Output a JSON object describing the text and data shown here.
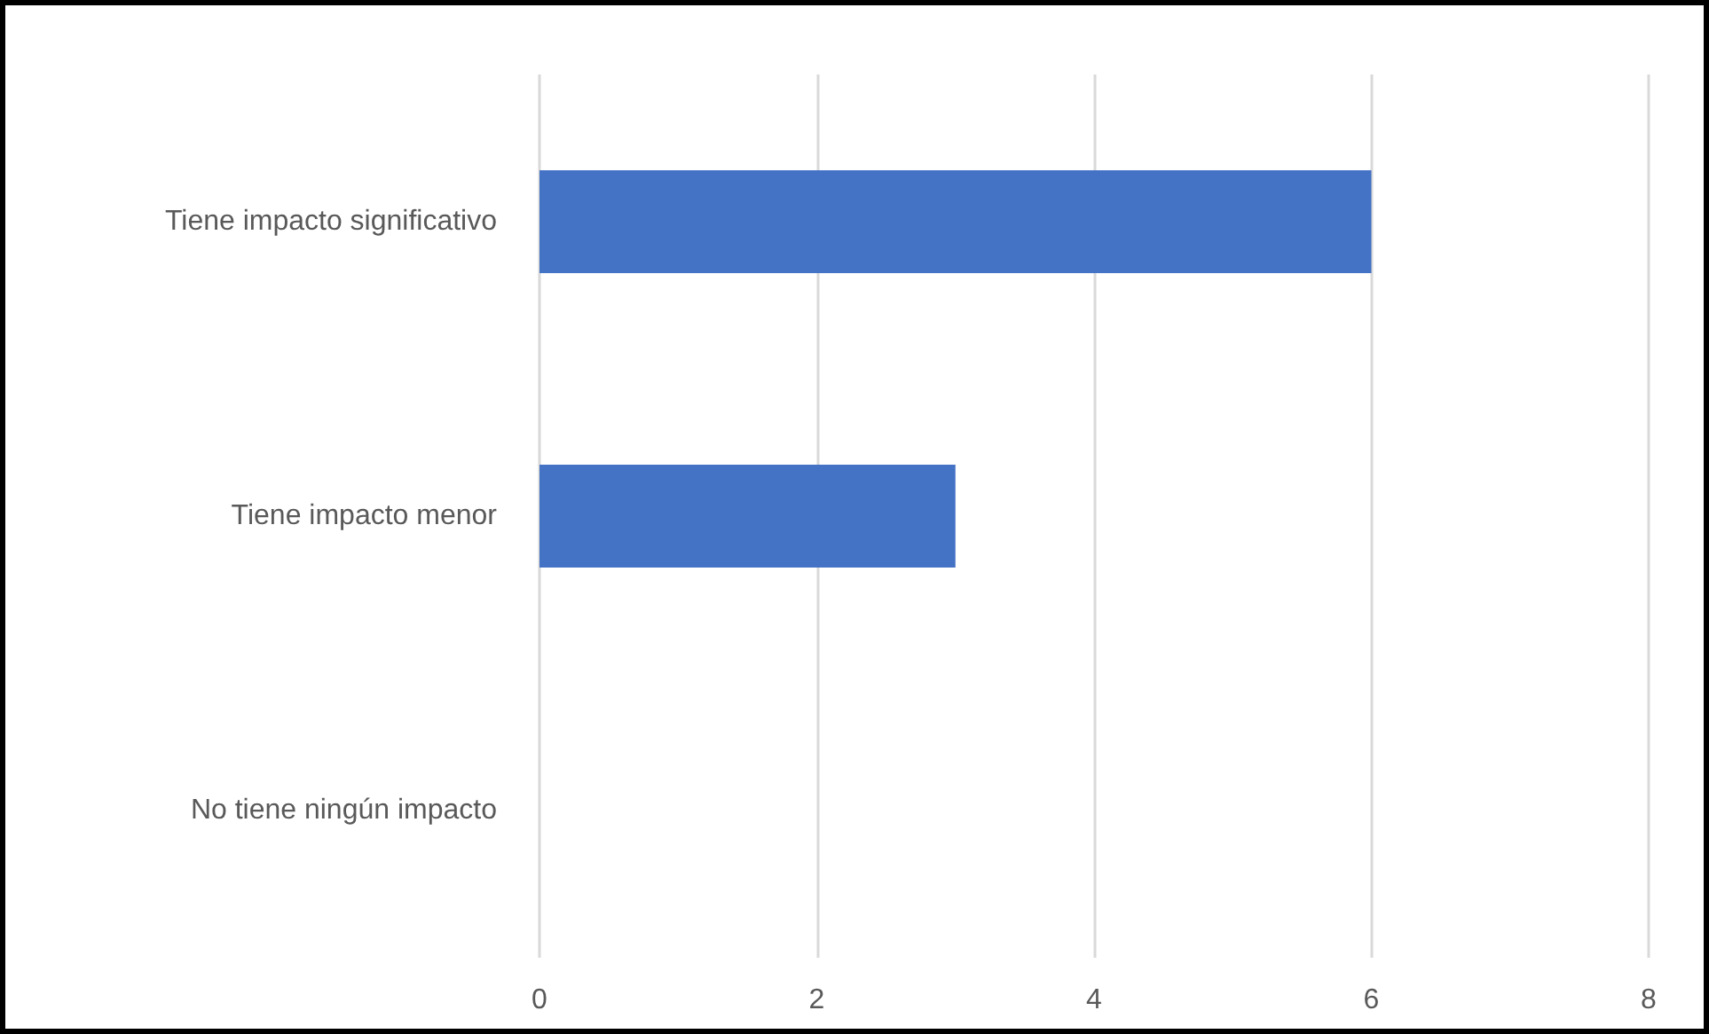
{
  "chart_data": {
    "type": "bar",
    "orientation": "horizontal",
    "categories": [
      "Tiene impacto significativo",
      "Tiene impacto menor",
      "No tiene ningún impacto"
    ],
    "values": [
      6,
      3,
      0
    ],
    "color": "#4472c4",
    "xlim": [
      0,
      8
    ],
    "xticks": [
      0,
      2,
      4,
      6,
      8
    ],
    "grid": "x"
  }
}
